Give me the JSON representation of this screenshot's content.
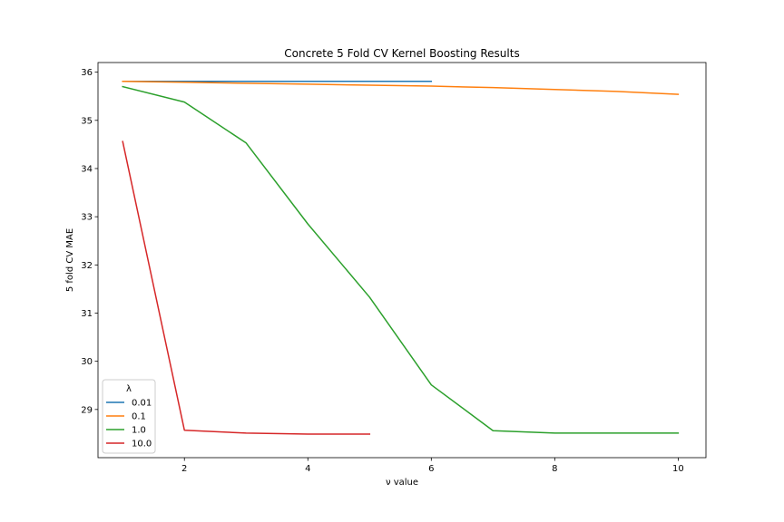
{
  "chart_data": {
    "type": "line",
    "title": "Concrete 5 Fold CV Kernel Boosting Results",
    "xlabel": "ν value",
    "ylabel": "5 fold CV MAE",
    "xlim": [
      0.6,
      10.45
    ],
    "ylim": [
      28.0,
      36.2
    ],
    "xticks": [
      2,
      4,
      6,
      8,
      10
    ],
    "yticks": [
      29,
      30,
      31,
      32,
      33,
      34,
      35,
      36
    ],
    "grid": false,
    "legend": {
      "title": "λ",
      "placement": "lower-left"
    },
    "series": [
      {
        "name": "0.01",
        "color": "#1f77b4",
        "x": [
          1,
          2,
          3,
          4,
          5,
          6
        ],
        "y": [
          35.81,
          35.81,
          35.81,
          35.81,
          35.81,
          35.81
        ]
      },
      {
        "name": "0.1",
        "color": "#ff7f0e",
        "x": [
          1,
          2,
          3,
          4,
          5,
          6,
          7,
          8,
          9,
          10
        ],
        "y": [
          35.81,
          35.79,
          35.77,
          35.75,
          35.73,
          35.71,
          35.68,
          35.64,
          35.6,
          35.54
        ]
      },
      {
        "name": "1.0",
        "color": "#2ca02c",
        "x": [
          1,
          2,
          3,
          4,
          5,
          6,
          7,
          8,
          9,
          10
        ],
        "y": [
          35.7,
          35.38,
          34.53,
          32.85,
          31.33,
          29.51,
          28.56,
          28.51,
          28.51,
          28.51
        ]
      },
      {
        "name": "10.0",
        "color": "#d62728",
        "x": [
          1,
          2,
          3,
          4,
          5
        ],
        "y": [
          34.56,
          28.57,
          28.51,
          28.49,
          28.49
        ]
      }
    ]
  }
}
